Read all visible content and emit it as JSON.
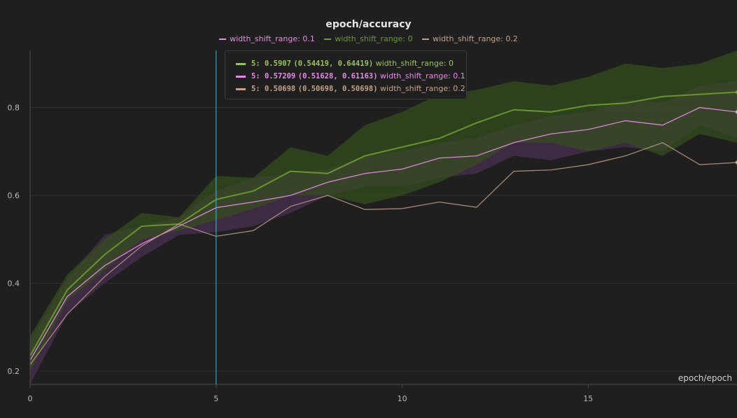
{
  "chart_data": {
    "type": "line",
    "title": "epoch/accuracy",
    "xlabel": "epoch/epoch",
    "ylabel": "",
    "xlim": [
      0,
      19
    ],
    "ylim": [
      0.17,
      0.93
    ],
    "x_ticks": [
      0,
      5,
      10,
      15
    ],
    "y_ticks": [
      0.2,
      0.4,
      0.6,
      0.8
    ],
    "grid": true,
    "legend_position": "top-center",
    "x": [
      0,
      1,
      2,
      3,
      4,
      5,
      6,
      7,
      8,
      9,
      10,
      11,
      12,
      13,
      14,
      15,
      16,
      17,
      18,
      19
    ],
    "hover_x": 5,
    "series": [
      {
        "name": "width_shift_range: 0.1",
        "color": "#e58be5",
        "band_color": "#4a2f52",
        "values": [
          0.225,
          0.37,
          0.44,
          0.49,
          0.53,
          0.57209,
          0.585,
          0.6,
          0.63,
          0.65,
          0.66,
          0.685,
          0.69,
          0.72,
          0.74,
          0.75,
          0.77,
          0.76,
          0.8,
          0.79
        ],
        "lower": [
          0.17,
          0.33,
          0.4,
          0.46,
          0.51,
          0.51628,
          0.53,
          0.56,
          0.6,
          0.62,
          0.62,
          0.64,
          0.65,
          0.69,
          0.68,
          0.7,
          0.71,
          0.7,
          0.76,
          0.73
        ],
        "upper": [
          0.27,
          0.41,
          0.51,
          0.53,
          0.55,
          0.61163,
          0.64,
          0.65,
          0.66,
          0.69,
          0.7,
          0.72,
          0.73,
          0.76,
          0.78,
          0.79,
          0.82,
          0.81,
          0.85,
          0.86
        ]
      },
      {
        "name": "width_shift_range: 0",
        "color": "#6b9a2f",
        "band_color": "#34501c",
        "values": [
          0.235,
          0.385,
          0.465,
          0.53,
          0.535,
          0.5907,
          0.61,
          0.655,
          0.65,
          0.69,
          0.71,
          0.73,
          0.765,
          0.795,
          0.79,
          0.805,
          0.81,
          0.825,
          0.83,
          0.835
        ],
        "lower": [
          0.2,
          0.36,
          0.43,
          0.5,
          0.52,
          0.54419,
          0.57,
          0.6,
          0.6,
          0.58,
          0.6,
          0.63,
          0.67,
          0.72,
          0.72,
          0.7,
          0.72,
          0.69,
          0.74,
          0.72
        ],
        "upper": [
          0.28,
          0.42,
          0.5,
          0.56,
          0.55,
          0.64419,
          0.64,
          0.71,
          0.69,
          0.76,
          0.79,
          0.83,
          0.84,
          0.86,
          0.85,
          0.87,
          0.9,
          0.89,
          0.9,
          0.93
        ]
      },
      {
        "name": "width_shift_range: 0.2",
        "color": "#c4a189",
        "band_color": "#5a4a3e",
        "values": [
          0.215,
          0.33,
          0.415,
          0.485,
          0.535,
          0.50698,
          0.52,
          0.575,
          0.6,
          0.568,
          0.57,
          0.585,
          0.573,
          0.655,
          0.658,
          0.67,
          0.69,
          0.72,
          0.67,
          0.675
        ],
        "lower": [
          0.215,
          0.33,
          0.415,
          0.485,
          0.535,
          0.50698,
          0.52,
          0.575,
          0.6,
          0.568,
          0.57,
          0.585,
          0.573,
          0.655,
          0.658,
          0.67,
          0.69,
          0.72,
          0.67,
          0.675
        ],
        "upper": [
          0.215,
          0.33,
          0.415,
          0.485,
          0.535,
          0.50698,
          0.52,
          0.575,
          0.6,
          0.568,
          0.57,
          0.585,
          0.573,
          0.655,
          0.658,
          0.67,
          0.69,
          0.72,
          0.67,
          0.675
        ]
      }
    ]
  },
  "legend": [
    {
      "label": "width_shift_range: 0.1",
      "color": "#e58be5"
    },
    {
      "label": "width_shift_range: 0",
      "color": "#6b9a2f"
    },
    {
      "label": "width_shift_range: 0.2",
      "color": "#c4a189"
    }
  ],
  "tooltip": {
    "rows": [
      {
        "step": "5",
        "value": "0.5907",
        "range": "(0.54419, 0.64419)",
        "label": "width_shift_range: 0",
        "color": "#9cc25a"
      },
      {
        "step": "5",
        "value": "0.57209",
        "range": "(0.51628, 0.61163)",
        "label": "width_shift_range: 0.1",
        "color": "#e58be5"
      },
      {
        "step": "5",
        "value": "0.50698",
        "range": "(0.50698, 0.50698)",
        "label": "width_shift_range: 0.2",
        "color": "#c4a189"
      }
    ]
  }
}
